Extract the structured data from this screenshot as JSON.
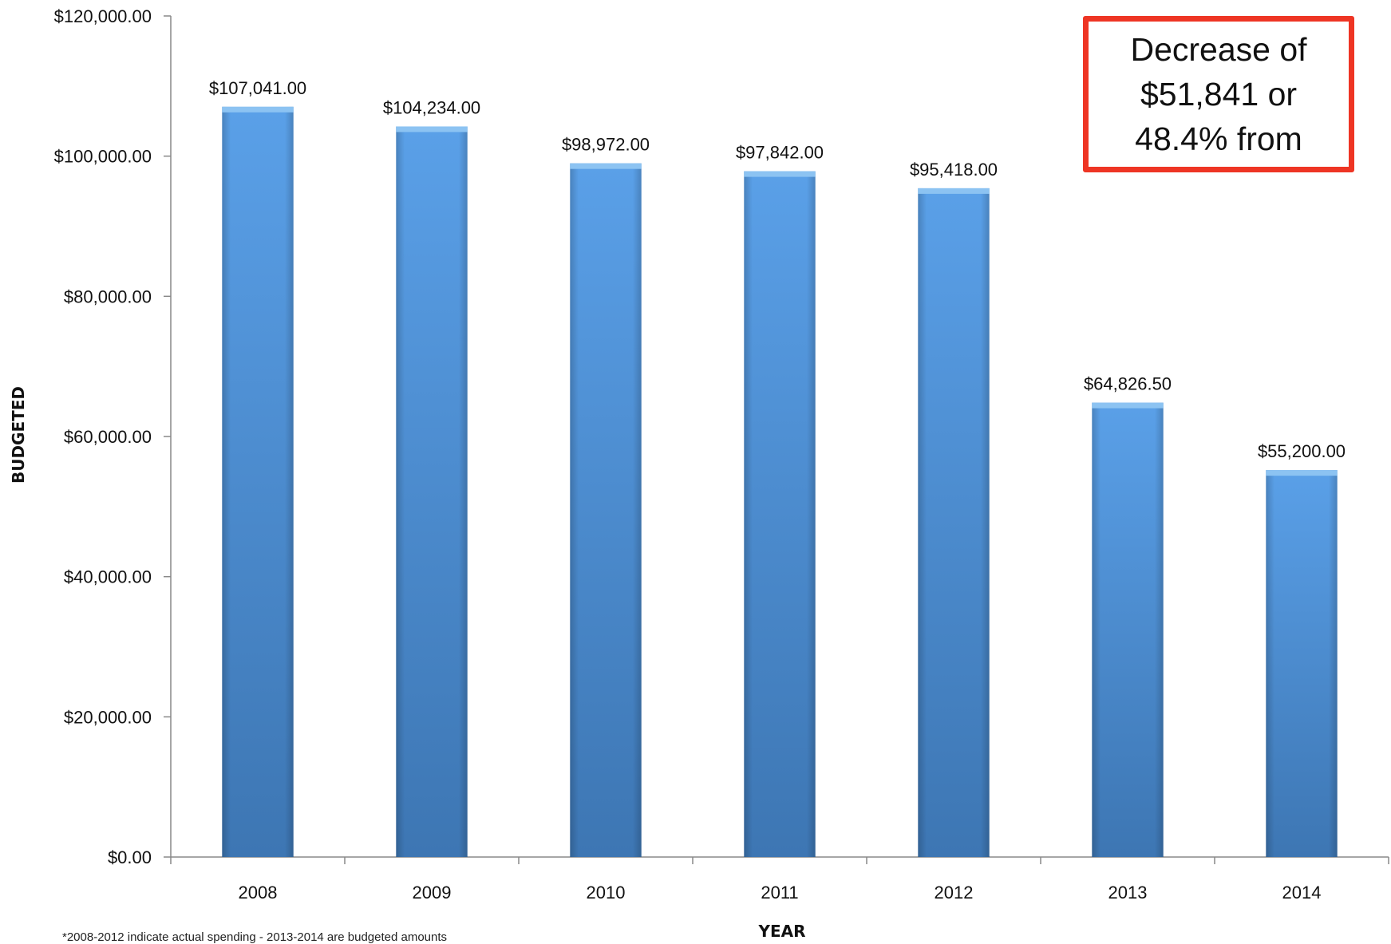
{
  "chart_data": {
    "type": "bar",
    "categories": [
      "2008",
      "2009",
      "2010",
      "2011",
      "2012",
      "2013",
      "2014"
    ],
    "values": [
      107041.0,
      104234.0,
      98972.0,
      97842.0,
      95418.0,
      64826.5,
      55200.0
    ],
    "data_labels": [
      "$107,041.00",
      "$104,234.00",
      "$98,972.00",
      "$97,842.00",
      "$95,418.00",
      "$64,826.50",
      "$55,200.00"
    ],
    "y_ticks": [
      0,
      20000,
      40000,
      60000,
      80000,
      100000,
      120000
    ],
    "y_tick_labels": [
      "$0.00",
      "$20,000.00",
      "$40,000.00",
      "$60,000.00",
      "$80,000.00",
      "$100,000.00",
      "$120,000.00"
    ],
    "ylim": [
      0,
      120000
    ],
    "title": "",
    "xlabel": "YEAR",
    "ylabel": "BUDGETED",
    "grid": false,
    "bar_color": "#4a8ed8",
    "annotation": "Decrease of\n$51,841 or\n48.4% from",
    "annotation_color": "#ee3524",
    "footnote": "*2008-2012 indicate actual spending - 2013-2014 are budgeted amounts"
  }
}
